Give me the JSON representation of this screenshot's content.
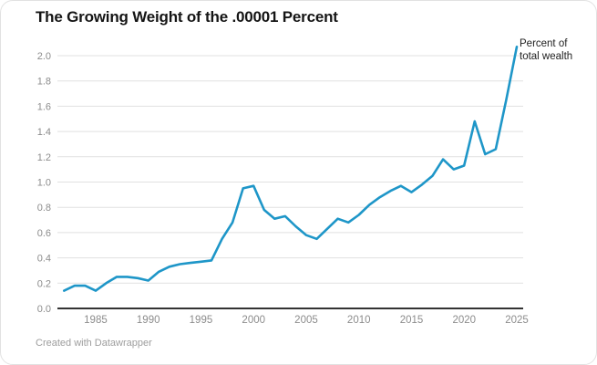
{
  "header": {
    "title": "The Growing Weight of the .00001 Percent"
  },
  "footer": {
    "credit": "Created with Datawrapper"
  },
  "chart_data": {
    "type": "line",
    "title": "The Growing Weight of the .00001 Percent",
    "xlabel": "",
    "ylabel": "",
    "legend_position": "top-right",
    "grid": "horizontal",
    "line_color": "#1e96c8",
    "baseline_color": "#333333",
    "grid_color": "#e1e1e1",
    "tick_label_color": "#8c8c8c",
    "xlim": [
      1982,
      2025
    ],
    "ylim": [
      0,
      2.0
    ],
    "x_ticks": [
      1985,
      1990,
      1995,
      2000,
      2005,
      2010,
      2015,
      2020,
      2025
    ],
    "y_ticks": [
      0.0,
      0.2,
      0.4,
      0.6,
      0.8,
      1.0,
      1.2,
      1.4,
      1.6,
      1.8,
      2.0
    ],
    "series": [
      {
        "name": "Percent of total wealth",
        "x": [
          1982,
          1983,
          1984,
          1985,
          1986,
          1987,
          1988,
          1989,
          1990,
          1991,
          1992,
          1993,
          1994,
          1995,
          1996,
          1997,
          1998,
          1999,
          2000,
          2001,
          2002,
          2003,
          2004,
          2005,
          2006,
          2007,
          2008,
          2009,
          2010,
          2011,
          2012,
          2013,
          2014,
          2015,
          2016,
          2017,
          2018,
          2019,
          2020,
          2021,
          2022,
          2023,
          2024,
          2025
        ],
        "values": [
          0.14,
          0.18,
          0.18,
          0.14,
          0.2,
          0.25,
          0.25,
          0.24,
          0.22,
          0.29,
          0.33,
          0.35,
          0.36,
          0.37,
          0.38,
          0.55,
          0.68,
          0.95,
          0.97,
          0.78,
          0.71,
          0.73,
          0.65,
          0.58,
          0.55,
          0.63,
          0.71,
          0.68,
          0.74,
          0.82,
          0.88,
          0.93,
          0.97,
          0.92,
          0.98,
          1.05,
          1.18,
          1.1,
          1.13,
          1.48,
          1.22,
          1.26,
          1.65,
          2.07
        ]
      }
    ]
  }
}
